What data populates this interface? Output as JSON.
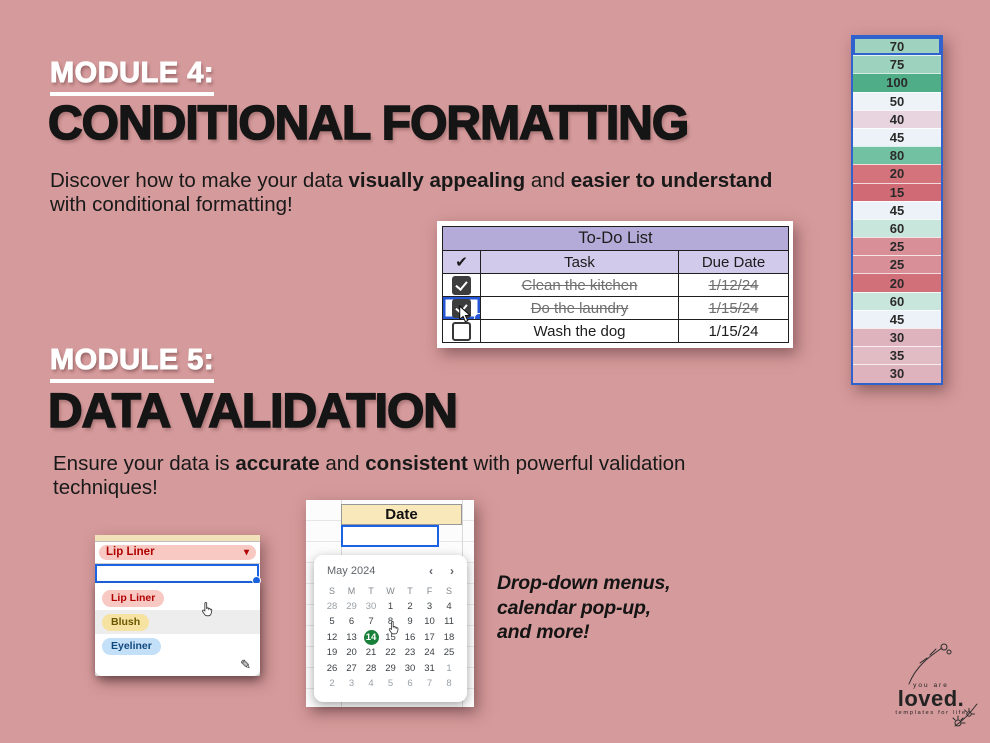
{
  "background_color": "#d59a9b",
  "icons": {
    "check_header": "✔",
    "dropdown_arrow": "▾",
    "nav_prev": "‹",
    "nav_next": "›",
    "pencil": "✎"
  },
  "module4": {
    "kicker": "MODULE 4:",
    "title": "CONDITIONAL FORMATTING",
    "desc": {
      "pre": "Discover how to make your data ",
      "bold1": "visually appealing",
      "mid": " and ",
      "bold2": "easier to understand",
      "line2": "with conditional formatting!"
    }
  },
  "module5": {
    "kicker": "MODULE 5:",
    "title": "DATA VALIDATION",
    "desc": {
      "pre": "Ensure your data is ",
      "bold1": "accurate",
      "mid": " and ",
      "bold2": "consistent",
      "post": " with powerful validation",
      "line2": "techniques!"
    }
  },
  "todo": {
    "title": "To-Do List",
    "columns": {
      "check": "✔",
      "task": "Task",
      "due": "Due Date"
    },
    "rows": [
      {
        "task": "Clean the kitchen",
        "due": "1/12/24",
        "checked": true,
        "struck": true,
        "selected": false
      },
      {
        "task": "Do the laundry",
        "due": "1/15/24",
        "checked": true,
        "struck": true,
        "selected": true
      },
      {
        "task": "Wash the dog",
        "due": "1/15/24",
        "checked": false,
        "struck": false,
        "selected": false
      }
    ]
  },
  "color_column": {
    "selection_color": "#2f62cc",
    "cells": [
      {
        "value": "70",
        "bg": "#9fd3c0"
      },
      {
        "value": "75",
        "bg": "#9cd2be"
      },
      {
        "value": "100",
        "bg": "#4fae88"
      },
      {
        "value": "50",
        "bg": "#edf3f7"
      },
      {
        "value": "40",
        "bg": "#e8d4df"
      },
      {
        "value": "45",
        "bg": "#ecf2f7"
      },
      {
        "value": "80",
        "bg": "#72c1a2"
      },
      {
        "value": "20",
        "bg": "#d4737c"
      },
      {
        "value": "15",
        "bg": "#d06a74"
      },
      {
        "value": "45",
        "bg": "#ecf2f7"
      },
      {
        "value": "60",
        "bg": "#c8e6db"
      },
      {
        "value": "25",
        "bg": "#d98f97"
      },
      {
        "value": "25",
        "bg": "#d98f97"
      },
      {
        "value": "20",
        "bg": "#d2707a"
      },
      {
        "value": "60",
        "bg": "#c8e6db"
      },
      {
        "value": "45",
        "bg": "#ecf2f7"
      },
      {
        "value": "30",
        "bg": "#dfb3bd"
      },
      {
        "value": "35",
        "bg": "#e2bcc5"
      },
      {
        "value": "30",
        "bg": "#dfb3bd"
      }
    ]
  },
  "dropdown": {
    "selected": {
      "label": "Lip Liner",
      "bg": "#f8c8c3",
      "color": "#b10202"
    },
    "hover_index": 1,
    "options": [
      {
        "label": "Lip Liner",
        "bg": "#f8c8c3",
        "color": "#b10202"
      },
      {
        "label": "Blush",
        "bg": "#f6e3a1",
        "color": "#6a5600"
      },
      {
        "label": "Eyeliner",
        "bg": "#c3e0f8",
        "color": "#11487d"
      }
    ]
  },
  "calendar": {
    "column_header": "Date",
    "month_label": "May 2024",
    "selected_day": "14",
    "day_headers": [
      "S",
      "M",
      "T",
      "W",
      "T",
      "F",
      "S"
    ],
    "weeks": [
      [
        {
          "d": "28",
          "m": 1
        },
        {
          "d": "29",
          "m": 1
        },
        {
          "d": "30",
          "m": 1
        },
        {
          "d": "1"
        },
        {
          "d": "2"
        },
        {
          "d": "3"
        },
        {
          "d": "4"
        }
      ],
      [
        {
          "d": "5"
        },
        {
          "d": "6"
        },
        {
          "d": "7"
        },
        {
          "d": "8"
        },
        {
          "d": "9"
        },
        {
          "d": "10"
        },
        {
          "d": "11"
        }
      ],
      [
        {
          "d": "12"
        },
        {
          "d": "13"
        },
        {
          "d": "14",
          "s": 1
        },
        {
          "d": "15"
        },
        {
          "d": "16"
        },
        {
          "d": "17"
        },
        {
          "d": "18"
        }
      ],
      [
        {
          "d": "19"
        },
        {
          "d": "20"
        },
        {
          "d": "21"
        },
        {
          "d": "22"
        },
        {
          "d": "23"
        },
        {
          "d": "24"
        },
        {
          "d": "25"
        }
      ],
      [
        {
          "d": "26"
        },
        {
          "d": "27"
        },
        {
          "d": "28"
        },
        {
          "d": "29"
        },
        {
          "d": "30"
        },
        {
          "d": "31"
        },
        {
          "d": "1",
          "m": 1
        }
      ],
      [
        {
          "d": "2",
          "m": 1
        },
        {
          "d": "3",
          "m": 1
        },
        {
          "d": "4",
          "m": 1
        },
        {
          "d": "5",
          "m": 1
        },
        {
          "d": "6",
          "m": 1
        },
        {
          "d": "7",
          "m": 1
        },
        {
          "d": "8",
          "m": 1
        }
      ]
    ]
  },
  "note": {
    "lines": [
      "Drop-down menus,",
      "calendar pop-up,",
      "and more!"
    ]
  },
  "logo": {
    "top": "you are",
    "main": "loved.",
    "sub": "templates for life"
  }
}
